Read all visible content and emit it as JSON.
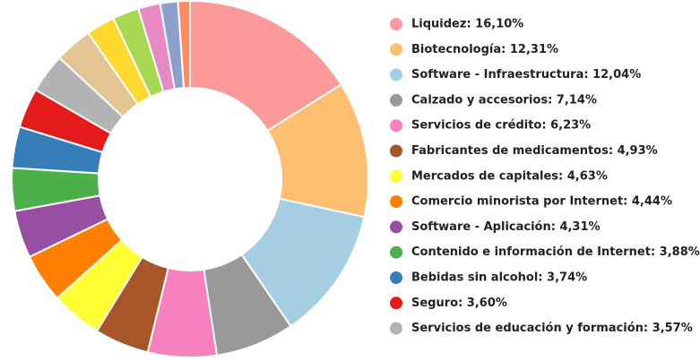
{
  "chart_data": {
    "type": "donut",
    "categories": [
      "Liquidez: 16,10%",
      "Biotecnología: 12,31%",
      "Software - Infraestructura: 12,04%",
      "Calzado y accesorios: 7,14%",
      "Servicios de crédito: 6,23%",
      "Fabricantes de medicamentos: 4,93%",
      "Mercados de capitales: 4,63%",
      "Comercio minorista por Internet: 4,44%",
      "Software - Aplicación: 4,31%",
      "Contenido e información de Internet: 3,88%",
      "Bebidas sin alcohol: 3,74%",
      "Seguro: 3,60%",
      "Servicios de educación y formación: 3,57%",
      null,
      null,
      null,
      null,
      null,
      null
    ],
    "values": [
      16.1,
      12.31,
      12.04,
      7.14,
      6.23,
      4.93,
      4.63,
      4.44,
      4.31,
      3.88,
      3.74,
      3.6,
      3.57,
      3.4,
      2.6,
      2.4,
      2.0,
      1.6,
      1.08
    ],
    "colors": [
      "#fb9a99",
      "#fdbf6f",
      "#a6cee3",
      "#999999",
      "#f781bf",
      "#a65628",
      "#ffff33",
      "#ff7f00",
      "#984ea3",
      "#4daf4a",
      "#377eb8",
      "#e41a1c",
      "#b3b3b3",
      "#e5c494",
      "#ffd92f",
      "#a6d854",
      "#e78ac3",
      "#8da0cb",
      "#fc8d62"
    ],
    "legend": "right"
  }
}
